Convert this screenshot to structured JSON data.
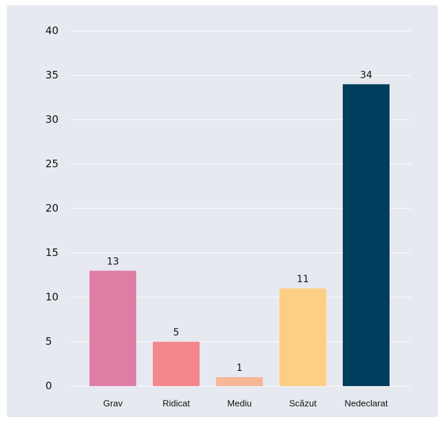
{
  "chart_data": {
    "type": "bar",
    "categories": [
      "Grav",
      "Ridicat",
      "Mediu",
      "Scăzut",
      "Nedeclarat"
    ],
    "values": [
      13,
      5,
      1,
      11,
      34
    ],
    "colors": [
      "#df7ea4",
      "#f4868e",
      "#f8b598",
      "#fdce86",
      "#023f5e"
    ],
    "ylim": [
      0,
      40
    ],
    "yticks": [
      0,
      5,
      10,
      15,
      20,
      25,
      30,
      35,
      40
    ],
    "grid": true
  }
}
